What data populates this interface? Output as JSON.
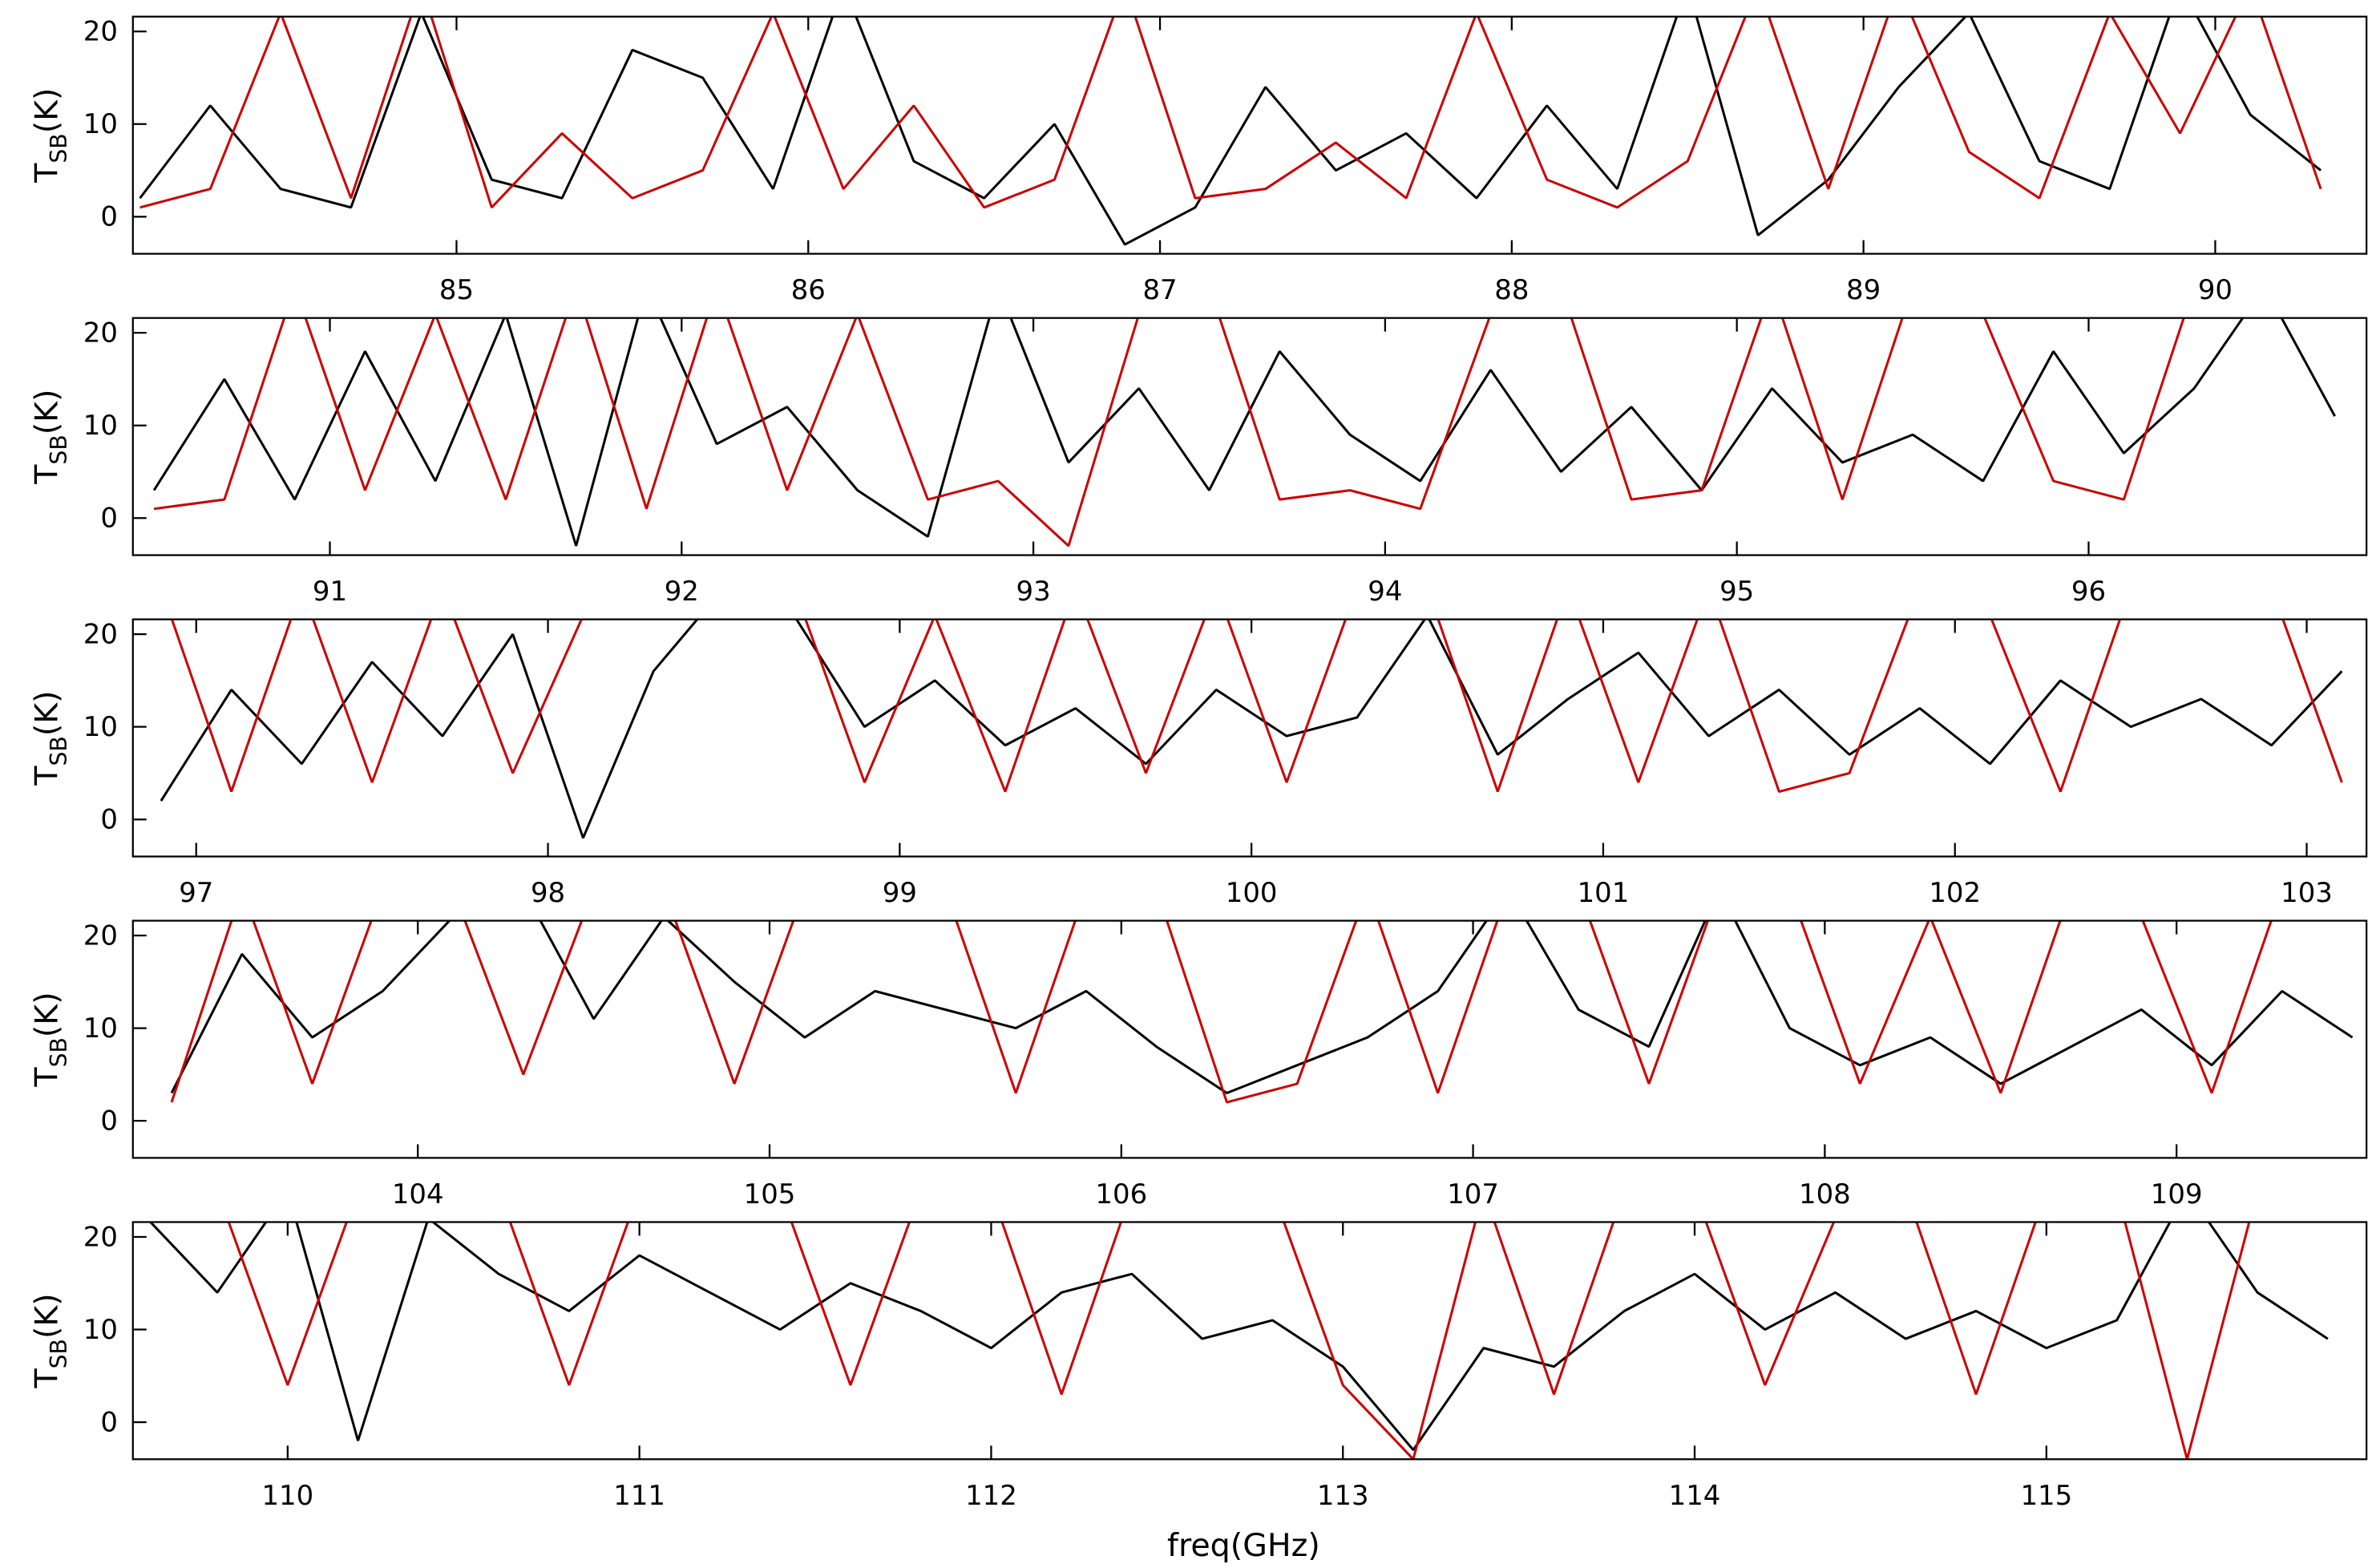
{
  "chart_data": [
    {
      "type": "line",
      "ylabel_main": "T",
      "ylabel_sub": "SB",
      "ylabel_unit": "(K)",
      "xlim": [
        84.08,
        90.43
      ],
      "ylim": [
        -4,
        21.6
      ],
      "yticks": [
        0,
        10,
        20
      ],
      "xticks": [
        85,
        86,
        87,
        88,
        89,
        90
      ],
      "x": [
        84.1,
        84.3,
        84.5,
        84.7,
        84.9,
        85.1,
        85.3,
        85.5,
        85.7,
        85.9,
        86.1,
        86.3,
        86.5,
        86.7,
        86.9,
        87.1,
        87.3,
        87.5,
        87.7,
        87.9,
        88.1,
        88.3,
        88.5,
        88.7,
        88.9,
        89.1,
        89.3,
        89.5,
        89.7,
        89.9,
        90.1,
        90.3
      ],
      "series": [
        {
          "color": "#000000",
          "values": [
            2,
            12,
            3,
            1,
            22,
            4,
            2,
            18,
            15,
            3,
            25,
            6,
            2,
            10,
            -3,
            1,
            14,
            5,
            9,
            2,
            12,
            3,
            25,
            -2,
            4,
            14,
            22,
            6,
            3,
            25,
            11,
            5
          ]
        },
        {
          "color": "#cc0000",
          "values": [
            1,
            3,
            22,
            2,
            25,
            1,
            9,
            2,
            5,
            22,
            3,
            12,
            1,
            4,
            25,
            2,
            3,
            8,
            2,
            22,
            4,
            1,
            6,
            25,
            3,
            25,
            7,
            2,
            22,
            9,
            25,
            3
          ]
        }
      ]
    },
    {
      "type": "line",
      "ylabel_main": "T",
      "ylabel_sub": "SB",
      "ylabel_unit": "(K)",
      "xlim": [
        90.44,
        96.79
      ],
      "ylim": [
        -4,
        21.6
      ],
      "yticks": [
        0,
        10,
        20
      ],
      "xticks": [
        91,
        92,
        93,
        94,
        95,
        96
      ],
      "x": [
        90.5,
        90.7,
        90.9,
        91.1,
        91.3,
        91.5,
        91.7,
        91.9,
        92.1,
        92.3,
        92.5,
        92.7,
        92.9,
        93.1,
        93.3,
        93.5,
        93.7,
        93.9,
        94.1,
        94.3,
        94.5,
        94.7,
        94.9,
        95.1,
        95.3,
        95.5,
        95.7,
        95.9,
        96.1,
        96.3,
        96.5,
        96.7
      ],
      "series": [
        {
          "color": "#000000",
          "values": [
            3,
            15,
            2,
            18,
            4,
            22,
            -3,
            25,
            8,
            12,
            3,
            -2,
            25,
            6,
            14,
            3,
            18,
            9,
            4,
            16,
            5,
            12,
            3,
            14,
            6,
            9,
            4,
            18,
            7,
            14,
            25,
            11
          ]
        },
        {
          "color": "#cc0000",
          "values": [
            1,
            2,
            25,
            3,
            22,
            2,
            25,
            1,
            25,
            3,
            22,
            2,
            4,
            -3,
            22,
            25,
            2,
            3,
            1,
            22,
            25,
            2,
            3,
            25,
            2,
            25,
            22,
            4,
            2,
            25,
            25,
            22
          ]
        }
      ]
    },
    {
      "type": "line",
      "ylabel_main": "T",
      "ylabel_sub": "SB",
      "ylabel_unit": "(K)",
      "xlim": [
        96.82,
        103.17
      ],
      "ylim": [
        -4,
        21.6
      ],
      "yticks": [
        0,
        10,
        20
      ],
      "xticks": [
        97,
        98,
        99,
        100,
        101,
        102,
        103
      ],
      "x": [
        96.9,
        97.1,
        97.3,
        97.5,
        97.7,
        97.9,
        98.1,
        98.3,
        98.5,
        98.7,
        98.9,
        99.1,
        99.3,
        99.5,
        99.7,
        99.9,
        100.1,
        100.3,
        100.5,
        100.7,
        100.9,
        101.1,
        101.3,
        101.5,
        101.7,
        101.9,
        102.1,
        102.3,
        102.5,
        102.7,
        102.9,
        103.1
      ],
      "series": [
        {
          "color": "#000000",
          "values": [
            2,
            14,
            6,
            17,
            9,
            20,
            -2,
            16,
            25,
            22,
            10,
            15,
            8,
            12,
            6,
            14,
            9,
            11,
            22,
            7,
            13,
            18,
            9,
            14,
            7,
            12,
            6,
            15,
            10,
            13,
            8,
            16
          ]
        },
        {
          "color": "#cc0000",
          "values": [
            25,
            3,
            25,
            4,
            25,
            5,
            22,
            25,
            25,
            25,
            4,
            22,
            3,
            25,
            5,
            25,
            4,
            25,
            25,
            3,
            25,
            4,
            25,
            3,
            5,
            25,
            22,
            3,
            25,
            22,
            25,
            4
          ]
        }
      ]
    },
    {
      "type": "line",
      "ylabel_main": "T",
      "ylabel_sub": "SB",
      "ylabel_unit": "(K)",
      "xlim": [
        103.19,
        109.54
      ],
      "ylim": [
        -4,
        21.6
      ],
      "yticks": [
        0,
        10,
        20
      ],
      "xticks": [
        104,
        105,
        106,
        107,
        108,
        109
      ],
      "x": [
        103.3,
        103.5,
        103.7,
        103.9,
        104.1,
        104.3,
        104.5,
        104.7,
        104.9,
        105.1,
        105.3,
        105.5,
        105.7,
        105.9,
        106.1,
        106.3,
        106.5,
        106.7,
        106.9,
        107.1,
        107.3,
        107.5,
        107.7,
        107.9,
        108.1,
        108.3,
        108.5,
        108.7,
        108.9,
        109.1,
        109.3,
        109.5
      ],
      "series": [
        {
          "color": "#000000",
          "values": [
            3,
            18,
            9,
            14,
            22,
            25,
            11,
            22,
            15,
            9,
            14,
            12,
            10,
            14,
            8,
            3,
            6,
            9,
            14,
            25,
            12,
            8,
            25,
            10,
            6,
            9,
            4,
            8,
            12,
            6,
            14,
            9
          ]
        },
        {
          "color": "#cc0000",
          "values": [
            2,
            25,
            4,
            25,
            25,
            5,
            25,
            25,
            4,
            25,
            22,
            25,
            3,
            25,
            25,
            2,
            4,
            25,
            3,
            25,
            25,
            4,
            25,
            25,
            4,
            22,
            3,
            25,
            22,
            3,
            25,
            25
          ]
        }
      ]
    },
    {
      "type": "line",
      "ylabel_main": "T",
      "ylabel_sub": "SB",
      "ylabel_unit": "(K)",
      "xlabel": "freq(GHz)",
      "xlim": [
        109.56,
        115.91
      ],
      "ylim": [
        -4,
        21.6
      ],
      "yticks": [
        0,
        10,
        20
      ],
      "xticks": [
        110,
        111,
        112,
        113,
        114,
        115
      ],
      "x": [
        109.6,
        109.8,
        110.0,
        110.2,
        110.4,
        110.6,
        110.8,
        111.0,
        111.2,
        111.4,
        111.6,
        111.8,
        112.0,
        112.2,
        112.4,
        112.6,
        112.8,
        113.0,
        113.2,
        113.4,
        113.6,
        113.8,
        114.0,
        114.2,
        114.4,
        114.6,
        114.8,
        115.0,
        115.2,
        115.4,
        115.6,
        115.8
      ],
      "series": [
        {
          "color": "#000000",
          "values": [
            22,
            14,
            25,
            -2,
            22,
            16,
            12,
            18,
            14,
            10,
            15,
            12,
            8,
            14,
            16,
            9,
            11,
            6,
            -3,
            8,
            6,
            12,
            16,
            10,
            14,
            9,
            12,
            8,
            11,
            25,
            14,
            9
          ]
        },
        {
          "color": "#cc0000",
          "values": [
            25,
            25,
            4,
            25,
            25,
            25,
            4,
            25,
            22,
            25,
            4,
            25,
            25,
            3,
            25,
            22,
            25,
            4,
            -4,
            25,
            3,
            25,
            25,
            4,
            22,
            25,
            3,
            25,
            25,
            -4,
            25,
            22
          ]
        }
      ]
    }
  ]
}
